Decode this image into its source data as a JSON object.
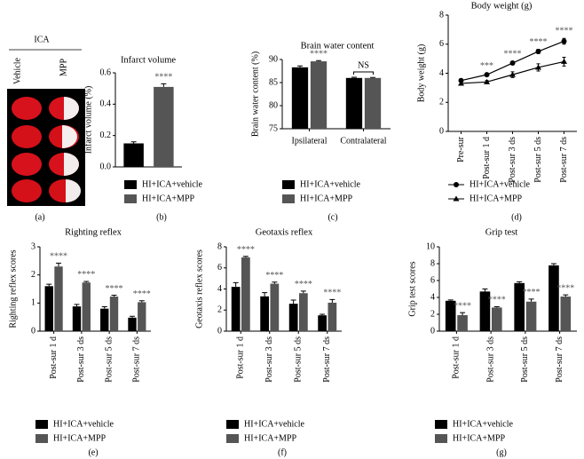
{
  "panel_a": {
    "header": "ICA",
    "columns": [
      "Vehicle",
      "MPP"
    ],
    "label": "(a)"
  },
  "chart_data": [
    {
      "type": "bar",
      "title": "Infarct volume",
      "y_label": "Infarct volume (%)",
      "panel_label": "(b)",
      "categories": [
        null
      ],
      "series": [
        {
          "name": "HI+ICA+vehicle",
          "color": "#000000",
          "values": [
            0.15
          ],
          "errors": [
            0.01
          ]
        },
        {
          "name": "HI+ICA+MPP",
          "color": "#555555",
          "values": [
            0.51
          ],
          "errors": [
            0.02
          ]
        }
      ],
      "annotations": [
        "****"
      ],
      "ylim": [
        0,
        0.6
      ],
      "yticks": [
        {
          "value": 0,
          "label": "0.0"
        },
        0.2,
        0.4,
        0.6
      ]
    },
    {
      "type": "bar",
      "title": "Brain water content",
      "y_label": "Brain water content (%)",
      "panel_label": "(c)",
      "categories": [
        "Ipsilateral",
        "Contralateral"
      ],
      "series": [
        {
          "name": "HI+ICA+vehicle",
          "color": "#000000",
          "values": [
            88.3,
            86.0
          ],
          "errors": [
            0.3,
            0.15
          ]
        },
        {
          "name": "HI+ICA+MPP",
          "color": "#555555",
          "values": [
            89.6,
            86.0
          ],
          "errors": [
            0.15,
            0.1
          ]
        }
      ],
      "annotations": [
        "****",
        "NS"
      ],
      "ylim": [
        75,
        90
      ],
      "yticks": [
        75,
        80,
        85,
        90
      ]
    },
    {
      "type": "line",
      "title": "Body weight (g)",
      "y_label": "Body weight (g)",
      "panel_label": "(d)",
      "categories": [
        "Pre-sur",
        "Post-sur 1 d",
        "Post-sur 3 ds",
        "Post-sur 5 ds",
        "Post-sur 7 ds"
      ],
      "series": [
        {
          "name": "HI+ICA+vehicle",
          "color": "#000000",
          "marker": "circle",
          "values": [
            3.5,
            3.9,
            4.7,
            5.5,
            6.2
          ],
          "errors": [
            0.1,
            0.1,
            0.1,
            0.15,
            0.2
          ]
        },
        {
          "name": "HI+ICA+MPP",
          "color": "#000000",
          "marker": "triangle",
          "values": [
            3.3,
            3.4,
            3.9,
            4.4,
            4.8
          ],
          "errors": [
            0.1,
            0.1,
            0.2,
            0.25,
            0.3
          ]
        }
      ],
      "annotations": [
        null,
        "***",
        "****",
        "****",
        "****"
      ],
      "ylim": [
        0,
        8
      ],
      "yticks": [
        0,
        2,
        4,
        6,
        8
      ]
    },
    {
      "type": "bar",
      "title": "Righting reflex",
      "y_label": "Righting reflex scores",
      "panel_label": "(e)",
      "categories": [
        "Post-sur 1 d",
        "Post-sur 3 ds",
        "Post-sur 5 ds",
        "Post-sur 7 ds"
      ],
      "series": [
        {
          "name": "HI+ICA+vehicle",
          "color": "#000000",
          "values": [
            1.6,
            0.88,
            0.8,
            0.48
          ],
          "errors": [
            0.07,
            0.07,
            0.07,
            0.05
          ]
        },
        {
          "name": "HI+ICA+MPP",
          "color": "#555555",
          "values": [
            2.3,
            1.73,
            1.23,
            1.03
          ],
          "errors": [
            0.12,
            0.04,
            0.05,
            0.05
          ]
        }
      ],
      "annotations": [
        "****",
        "****",
        "****",
        "****"
      ],
      "ylim": [
        0,
        3
      ],
      "yticks": [
        0,
        1,
        2,
        3
      ]
    },
    {
      "type": "bar",
      "title": "Geotaxis reflex",
      "y_label": "Geotaxis reflex scores",
      "panel_label": "(f)",
      "categories": [
        "Post-sur 1 d",
        "Post-sur 3 ds",
        "Post-sur 5 ds",
        "Post-sur 7 ds"
      ],
      "series": [
        {
          "name": "HI+ICA+vehicle",
          "color": "#000000",
          "values": [
            4.2,
            3.3,
            2.6,
            1.5
          ],
          "errors": [
            0.4,
            0.35,
            0.35,
            0.1
          ]
        },
        {
          "name": "HI+ICA+MPP",
          "color": "#555555",
          "values": [
            7.0,
            4.5,
            3.6,
            2.7
          ],
          "errors": [
            0.1,
            0.15,
            0.2,
            0.3
          ]
        }
      ],
      "annotations": [
        "****",
        "****",
        "****",
        "****"
      ],
      "ylim": [
        0,
        8
      ],
      "yticks": [
        0,
        2,
        4,
        6,
        8
      ]
    },
    {
      "type": "bar",
      "title": "Grip test",
      "y_label": "Grip test scores",
      "panel_label": "(g)",
      "categories": [
        "Post-sur 1 d",
        "Post-sur 3 ds",
        "Post-sur 5 ds",
        "Post-sur 7 ds"
      ],
      "series": [
        {
          "name": "HI+ICA+vehicle",
          "color": "#000000",
          "values": [
            3.6,
            4.7,
            5.7,
            7.8
          ],
          "errors": [
            0.1,
            0.3,
            0.15,
            0.2
          ]
        },
        {
          "name": "HI+ICA+MPP",
          "color": "#555555",
          "values": [
            1.9,
            2.8,
            3.5,
            4.1
          ],
          "errors": [
            0.3,
            0.1,
            0.3,
            0.2
          ]
        }
      ],
      "annotations": [
        "****",
        "****",
        "****",
        "****"
      ],
      "ylim": [
        0,
        10
      ],
      "yticks": [
        0,
        2,
        4,
        6,
        8,
        10
      ]
    }
  ]
}
